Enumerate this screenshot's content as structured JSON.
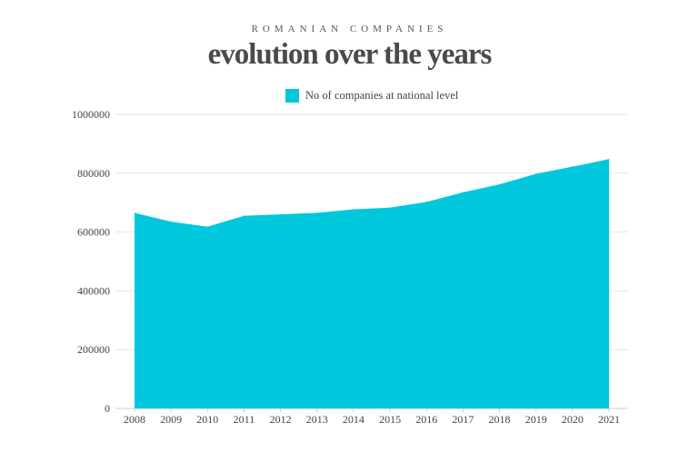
{
  "header": {
    "subtitle": "ROMANIAN COMPANIES",
    "title": "evolution over the years"
  },
  "colors": {
    "series": "#00c8dc",
    "grid": "#e6e6e6",
    "axis": "#cccccc"
  },
  "chart_data": {
    "type": "area",
    "title": "evolution over the years",
    "subtitle": "ROMANIAN COMPANIES",
    "xlabel": "",
    "ylabel": "",
    "x": [
      "2008",
      "2009",
      "2010",
      "2011",
      "2012",
      "2013",
      "2014",
      "2015",
      "2016",
      "2017",
      "2018",
      "2019",
      "2020",
      "2021"
    ],
    "series": [
      {
        "name": "No of companies at national level",
        "values": [
          665000,
          635000,
          618000,
          655000,
          660000,
          665000,
          677000,
          683000,
          702000,
          735000,
          762000,
          798000,
          822000,
          848000
        ]
      }
    ],
    "yticks": [
      "0",
      "200000",
      "400000",
      "600000",
      "800000",
      "1000000"
    ],
    "ylim": [
      0,
      1000000
    ],
    "grid": true,
    "legend": "top-center"
  }
}
